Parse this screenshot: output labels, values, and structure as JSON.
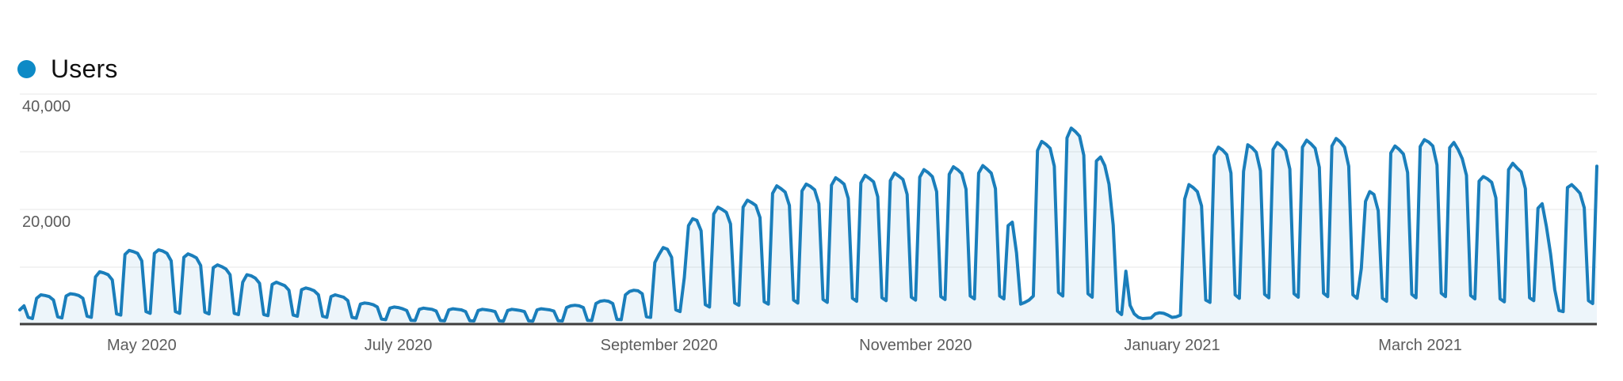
{
  "legend": {
    "items": [
      {
        "label": "Users",
        "color": "#0d8ac6"
      }
    ]
  },
  "chart_data": {
    "type": "area",
    "title": "Users",
    "xlabel": "",
    "ylabel": "",
    "ylim": [
      0,
      40000
    ],
    "grid": true,
    "legend_position": "top-left",
    "x_unit": "day",
    "grid_color": "#efefef",
    "axis_color": "#3e3e3e",
    "label_color": "#5c5c5c",
    "y_ticks": [
      {
        "label": "40,000",
        "value": 40000
      },
      {
        "label": "20,000",
        "value": 20000
      }
    ],
    "gridline_values": [
      10000,
      20000,
      30000,
      40000
    ],
    "x_ticks": [
      {
        "label": "May 2020",
        "day_index": 29
      },
      {
        "label": "July 2020",
        "day_index": 90
      },
      {
        "label": "September 2020",
        "day_index": 152
      },
      {
        "label": "November 2020",
        "day_index": 213
      },
      {
        "label": "January 2021",
        "day_index": 274
      },
      {
        "label": "March 2021",
        "day_index": 333
      }
    ],
    "series": [
      {
        "name": "Users",
        "color": "#1a7ebb",
        "fill": "rgba(26,126,187,0.08)",
        "values": [
          2600,
          3300,
          1300,
          1100,
          4600,
          5200,
          5100,
          4900,
          4300,
          1400,
          1200,
          5000,
          5400,
          5300,
          5100,
          4600,
          1500,
          1300,
          8300,
          9200,
          9000,
          8700,
          7800,
          1900,
          1700,
          12200,
          12900,
          12700,
          12400,
          11100,
          2300,
          2000,
          12400,
          13000,
          12800,
          12400,
          11100,
          2300,
          2000,
          11700,
          12300,
          12000,
          11600,
          10300,
          2200,
          1900,
          9900,
          10400,
          10100,
          9700,
          8700,
          2000,
          1800,
          7400,
          8700,
          8500,
          8100,
          7200,
          1800,
          1600,
          7000,
          7400,
          7100,
          6800,
          6000,
          1700,
          1500,
          6100,
          6400,
          6200,
          5900,
          5200,
          1500,
          1300,
          4900,
          5200,
          5000,
          4800,
          4200,
          1300,
          1150,
          3600,
          3800,
          3700,
          3500,
          3100,
          1000,
          900,
          2900,
          3100,
          3000,
          2800,
          2500,
          800,
          750,
          2700,
          2900,
          2800,
          2700,
          2400,
          750,
          700,
          2600,
          2800,
          2700,
          2600,
          2300,
          720,
          680,
          2500,
          2700,
          2600,
          2500,
          2300,
          700,
          660,
          2500,
          2700,
          2600,
          2500,
          2300,
          700,
          660,
          2600,
          2800,
          2700,
          2600,
          2400,
          720,
          690,
          3000,
          3300,
          3400,
          3300,
          3000,
          800,
          760,
          3700,
          4100,
          4200,
          4100,
          3700,
          950,
          900,
          5200,
          5800,
          6000,
          5900,
          5400,
          1400,
          1300,
          10800,
          12200,
          13400,
          13100,
          11700,
          2600,
          2300,
          8200,
          17200,
          18400,
          18100,
          16300,
          3500,
          3100,
          19200,
          20400,
          20000,
          19500,
          17500,
          3800,
          3400,
          20400,
          21600,
          21200,
          20700,
          18600,
          4000,
          3600,
          22800,
          24100,
          23600,
          23000,
          20700,
          4300,
          3800,
          23200,
          24400,
          24000,
          23400,
          21000,
          4400,
          3900,
          24200,
          25500,
          25000,
          24400,
          21900,
          4600,
          4100,
          24600,
          25900,
          25400,
          24800,
          22200,
          4700,
          4200,
          25000,
          26300,
          25800,
          25200,
          22600,
          4800,
          4300,
          25600,
          26900,
          26400,
          25700,
          23100,
          4900,
          4400,
          26100,
          27400,
          26900,
          26200,
          23500,
          5000,
          4500,
          26300,
          27600,
          27000,
          26300,
          23600,
          5000,
          4500,
          17200,
          17800,
          12500,
          3600,
          3900,
          4300,
          5000,
          30200,
          31800,
          31300,
          30600,
          27500,
          5600,
          5000,
          32400,
          34100,
          33500,
          32700,
          29400,
          5400,
          4800,
          28400,
          29100,
          27600,
          24400,
          17300,
          2400,
          1800,
          9300,
          3400,
          1900,
          1300,
          1100,
          1150,
          1200,
          1900,
          2100,
          2000,
          1700,
          1300,
          1400,
          1700,
          21800,
          24300,
          23800,
          23100,
          20600,
          4300,
          3900,
          29400,
          30800,
          30300,
          29500,
          26300,
          5200,
          4600,
          26600,
          31200,
          30700,
          29900,
          26700,
          5300,
          4700,
          30400,
          31600,
          31000,
          30200,
          27000,
          5400,
          4800,
          30800,
          32000,
          31400,
          30600,
          27300,
          5500,
          4900,
          31000,
          32300,
          31700,
          30800,
          27500,
          5200,
          4600,
          9800,
          21400,
          23100,
          22600,
          19800,
          4600,
          4100,
          29800,
          31000,
          30400,
          29600,
          26400,
          5300,
          4700,
          30900,
          32100,
          31700,
          31000,
          27700,
          5500,
          4900,
          30700,
          31600,
          30400,
          28800,
          25900,
          5100,
          4500,
          24900,
          25700,
          25300,
          24700,
          22000,
          4500,
          4000,
          26900,
          28000,
          27200,
          26500,
          23600,
          4700,
          4200,
          20200,
          21000,
          17100,
          12300,
          6100,
          2500,
          2300,
          23800,
          24300,
          23600,
          22800,
          20300,
          4200,
          3700,
          27500
        ]
      }
    ]
  }
}
